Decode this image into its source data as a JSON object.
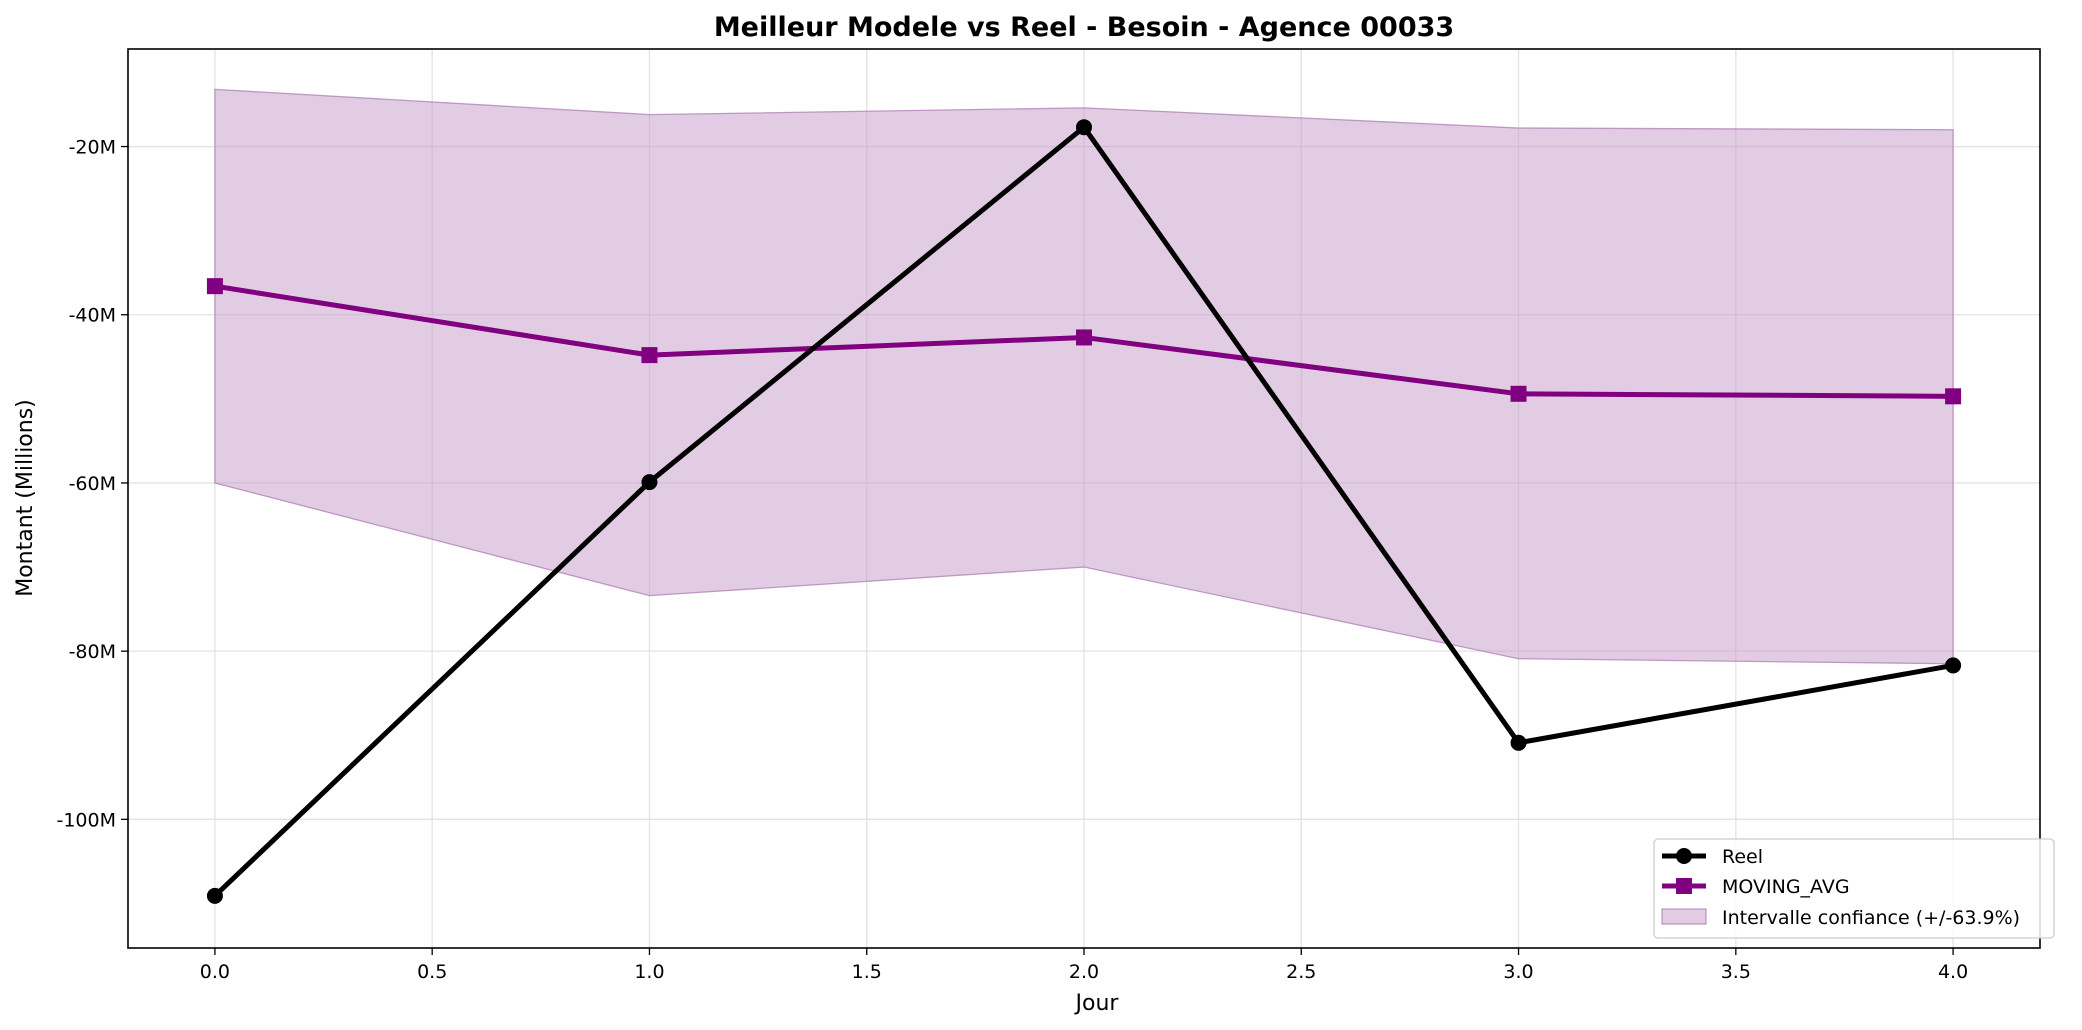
{
  "chart_data": {
    "type": "line",
    "title": "Meilleur Modele vs Reel - Besoin - Agence 00033",
    "xlabel": "Jour",
    "ylabel": "Montant (Millions)",
    "xlim": [
      -0.2,
      4.2
    ],
    "ylim": [
      -115.3,
      -8.4
    ],
    "x_ticks": [
      0.0,
      0.5,
      1.0,
      1.5,
      2.0,
      2.5,
      3.0,
      3.5,
      4.0
    ],
    "x_tick_labels": [
      "0.0",
      "0.5",
      "1.0",
      "1.5",
      "2.0",
      "2.5",
      "3.0",
      "3.5",
      "4.0"
    ],
    "y_ticks": [
      -100,
      -80,
      -60,
      -40,
      -20
    ],
    "y_tick_labels": [
      "-100M",
      "-80M",
      "-60M",
      "-40M",
      "-20M"
    ],
    "grid": true,
    "legend_position": "lower-right",
    "series": [
      {
        "name": "Reel",
        "color": "#000000",
        "marker": "circle",
        "x": [
          0,
          1,
          2,
          3,
          4
        ],
        "values": [
          -109.1,
          -59.9,
          -17.7,
          -90.9,
          -81.7
        ]
      },
      {
        "name": "MOVING_AVG",
        "color": "#800080",
        "marker": "square",
        "x": [
          0,
          1,
          2,
          3,
          4
        ],
        "values": [
          -36.6,
          -44.8,
          -42.7,
          -49.4,
          -49.7
        ]
      }
    ],
    "band": {
      "name": "Intervalle confiance (+/-63.9%)",
      "color": "#c59ac9",
      "x": [
        0,
        1,
        2,
        3,
        4
      ],
      "upper": [
        -13.2,
        -16.2,
        -15.4,
        -17.8,
        -18.0
      ],
      "lower": [
        -60.0,
        -73.4,
        -70.0,
        -80.9,
        -81.5
      ]
    }
  }
}
